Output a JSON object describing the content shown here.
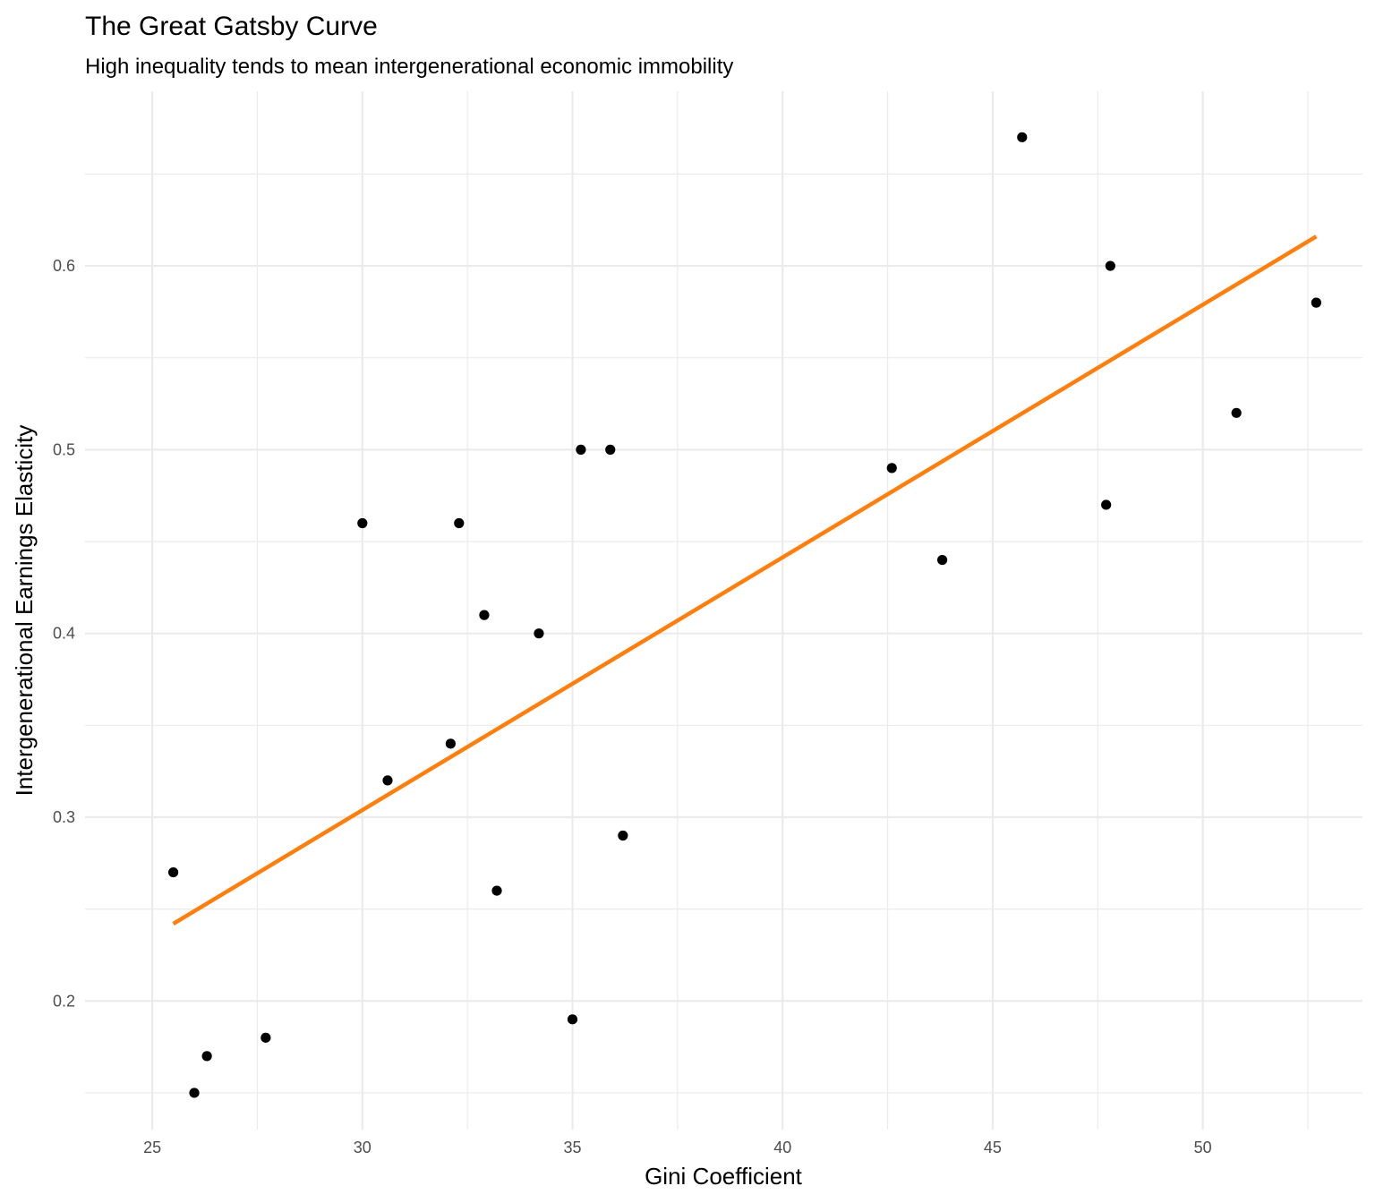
{
  "colors": {
    "background": "#ffffff",
    "grid": "#ebebeb",
    "point": "#000000",
    "fit_line": "#ff7f0e",
    "tick_text": "#4d4d4d"
  },
  "chart_data": {
    "type": "scatter",
    "title": "The Great Gatsby Curve",
    "subtitle": "High inequality tends to mean intergenerational economic immobility",
    "xlabel": "Gini Coefficient",
    "ylabel": "Intergenerational Earnings Elasticity",
    "xlim": [
      23.4,
      53.8
    ],
    "ylim": [
      0.13,
      0.695
    ],
    "x_ticks": [
      25,
      30,
      35,
      40,
      45,
      50
    ],
    "x_tick_labels": [
      "25",
      "30",
      "35",
      "40",
      "45",
      "50"
    ],
    "y_ticks": [
      0.2,
      0.3,
      0.4,
      0.5,
      0.6
    ],
    "y_tick_labels": [
      "0.2",
      "0.3",
      "0.4",
      "0.5",
      "0.6"
    ],
    "x_minor_ticks": [
      27.5,
      32.5,
      37.5,
      42.5,
      47.5,
      52.5
    ],
    "y_minor_ticks": [
      0.15,
      0.25,
      0.35,
      0.45,
      0.55,
      0.65
    ],
    "grid": true,
    "points": [
      {
        "x": 25.5,
        "y": 0.27
      },
      {
        "x": 26.0,
        "y": 0.15
      },
      {
        "x": 26.3,
        "y": 0.17
      },
      {
        "x": 27.7,
        "y": 0.18
      },
      {
        "x": 30.0,
        "y": 0.46
      },
      {
        "x": 30.6,
        "y": 0.32
      },
      {
        "x": 32.1,
        "y": 0.34
      },
      {
        "x": 32.3,
        "y": 0.46
      },
      {
        "x": 32.9,
        "y": 0.41
      },
      {
        "x": 33.2,
        "y": 0.26
      },
      {
        "x": 34.2,
        "y": 0.4
      },
      {
        "x": 35.0,
        "y": 0.19
      },
      {
        "x": 35.2,
        "y": 0.5
      },
      {
        "x": 35.9,
        "y": 0.5
      },
      {
        "x": 36.2,
        "y": 0.29
      },
      {
        "x": 42.6,
        "y": 0.49
      },
      {
        "x": 43.8,
        "y": 0.44
      },
      {
        "x": 45.7,
        "y": 0.67
      },
      {
        "x": 47.7,
        "y": 0.47
      },
      {
        "x": 47.8,
        "y": 0.6
      },
      {
        "x": 50.8,
        "y": 0.52
      },
      {
        "x": 52.7,
        "y": 0.58
      }
    ],
    "fit_line": {
      "x": [
        25.5,
        52.7
      ],
      "y": [
        0.242,
        0.616
      ]
    }
  }
}
